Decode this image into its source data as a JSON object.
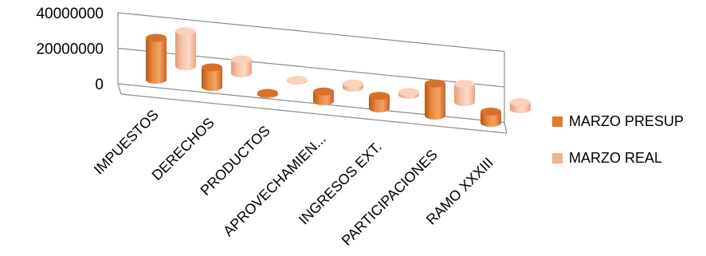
{
  "chart_data": {
    "type": "bar",
    "style": "3d-cylinder",
    "categories": [
      "IMPUESTOS",
      "DERECHOS",
      "PRODUCTOS",
      "APROVECHAMIEN...",
      "INGRESOS EXT.",
      "PARTICIPACIONES",
      "RAMO XXXIII"
    ],
    "series": [
      {
        "name": "MARZO PRESUP",
        "color": "#e07b2e",
        "values": [
          30000000,
          14000000,
          800000,
          7000000,
          9000000,
          23000000,
          8000000
        ]
      },
      {
        "name": "MARZO REAL",
        "color": "#f5b08d",
        "values": [
          25000000,
          10000000,
          500000,
          3000000,
          2000000,
          13000000,
          5000000
        ]
      }
    ],
    "yticks": [
      "40000000",
      "20000000",
      "0"
    ],
    "ylim": [
      0,
      40000000
    ],
    "grid": true,
    "legend_position": "right"
  }
}
